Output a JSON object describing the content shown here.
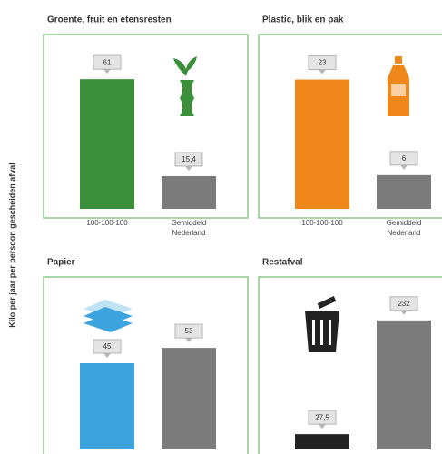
{
  "y_label": "Kilo per jaar per persoon gescheiden afval",
  "chart_data": [
    {
      "type": "bar",
      "title": "Groente, fruit en etensresten",
      "categories": [
        "100-100-100",
        "Gemiddeld Nederland"
      ],
      "values": [
        61,
        15.4
      ],
      "value_labels": [
        "61",
        "15,4"
      ],
      "colors": [
        "#3b8f3b",
        "#7b7b7b"
      ],
      "ylim": [
        0,
        82
      ]
    },
    {
      "type": "bar",
      "title": "Plastic, blik en pak",
      "categories": [
        "100-100-100",
        "Gemiddeld Nederland"
      ],
      "values": [
        23,
        6
      ],
      "colors": [
        "#f0871a",
        "#7b7b7b"
      ],
      "ylim": [
        0,
        31
      ]
    },
    {
      "type": "bar",
      "title": "Papier",
      "categories": [
        null,
        null
      ],
      "values": [
        45,
        53
      ],
      "colors": [
        "#3ba4de",
        "#7b7b7b"
      ],
      "ylim": [
        0,
        90
      ]
    },
    {
      "type": "bar",
      "title": "Restafval",
      "categories": [
        null,
        null
      ],
      "values": [
        27.5,
        232
      ],
      "value_labels": [
        "27,5",
        "232"
      ],
      "colors": [
        "#222222",
        "#7b7b7b"
      ],
      "ylim": [
        0,
        310
      ]
    }
  ]
}
